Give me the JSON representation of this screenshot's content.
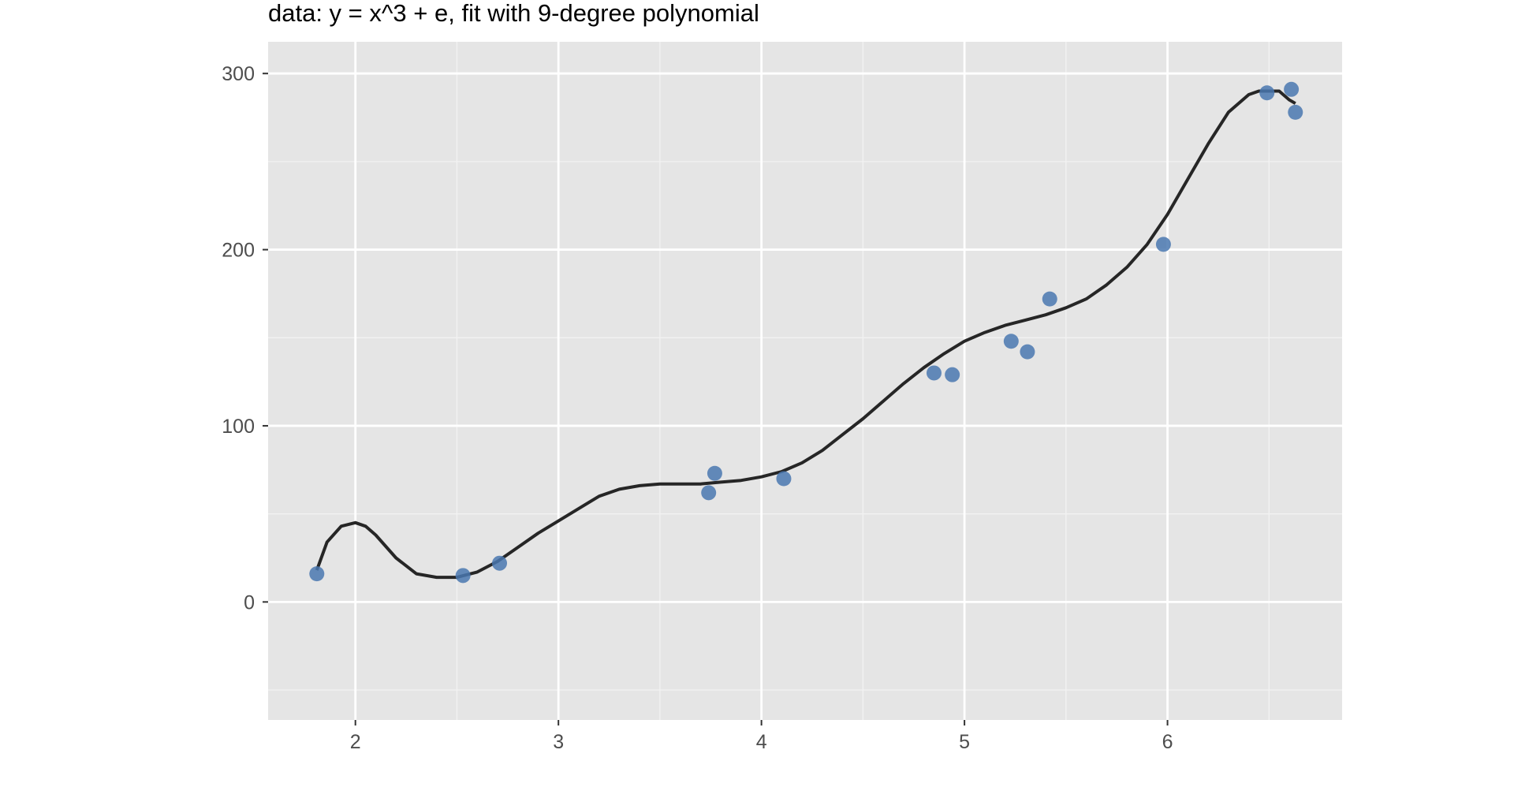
{
  "chart_data": {
    "type": "scatter",
    "title": "data: y = x^3  + e, fit with 9-degree polynomial",
    "xlabel": "",
    "ylabel": "",
    "xlim": [
      1.57,
      6.86
    ],
    "ylim": [
      -67,
      318
    ],
    "x_ticks": [
      2,
      3,
      4,
      5,
      6
    ],
    "x_tick_labels": [
      "2",
      "3",
      "4",
      "5",
      "6"
    ],
    "y_ticks": [
      0,
      100,
      200,
      300
    ],
    "y_tick_labels": [
      "0",
      "100",
      "200",
      "300"
    ],
    "grid": true,
    "legend": "none",
    "colors": {
      "panel_background": "#e5e5e5",
      "grid_major": "#ffffff",
      "grid_minor": "#f2f2f2",
      "points": "#4a78b0",
      "fit_line": "#262626",
      "tick_text": "#4d4d4d"
    },
    "series": [
      {
        "type": "scatter",
        "x": [
          1.81,
          2.53,
          2.71,
          3.74,
          3.77,
          4.11,
          4.85,
          4.94,
          5.23,
          5.31,
          5.42,
          5.98,
          6.49,
          6.61,
          6.63
        ],
        "y": [
          16,
          15,
          22,
          62,
          73,
          70,
          130,
          129,
          148,
          142,
          172,
          203,
          289,
          291,
          278
        ]
      },
      {
        "type": "line",
        "x": [
          1.81,
          1.86,
          1.93,
          2.0,
          2.05,
          2.1,
          2.2,
          2.3,
          2.4,
          2.5,
          2.6,
          2.7,
          2.8,
          2.9,
          3.0,
          3.1,
          3.2,
          3.3,
          3.4,
          3.5,
          3.6,
          3.7,
          3.8,
          3.9,
          4.0,
          4.1,
          4.2,
          4.3,
          4.4,
          4.5,
          4.6,
          4.7,
          4.8,
          4.9,
          5.0,
          5.1,
          5.2,
          5.3,
          5.4,
          5.5,
          5.6,
          5.7,
          5.8,
          5.9,
          6.0,
          6.1,
          6.2,
          6.3,
          6.4,
          6.45,
          6.5,
          6.55,
          6.6,
          6.63
        ],
        "y": [
          18,
          34,
          43,
          45,
          43,
          38,
          25,
          16,
          14,
          14,
          17,
          23,
          31,
          39,
          46,
          53,
          60,
          64,
          66,
          67,
          67,
          67,
          68,
          69,
          71,
          74,
          79,
          86,
          95,
          104,
          114,
          124,
          133,
          141,
          148,
          153,
          157,
          160,
          163,
          167,
          172,
          180,
          190,
          203,
          220,
          240,
          260,
          278,
          288,
          290,
          290,
          290,
          285,
          283
        ]
      }
    ]
  }
}
